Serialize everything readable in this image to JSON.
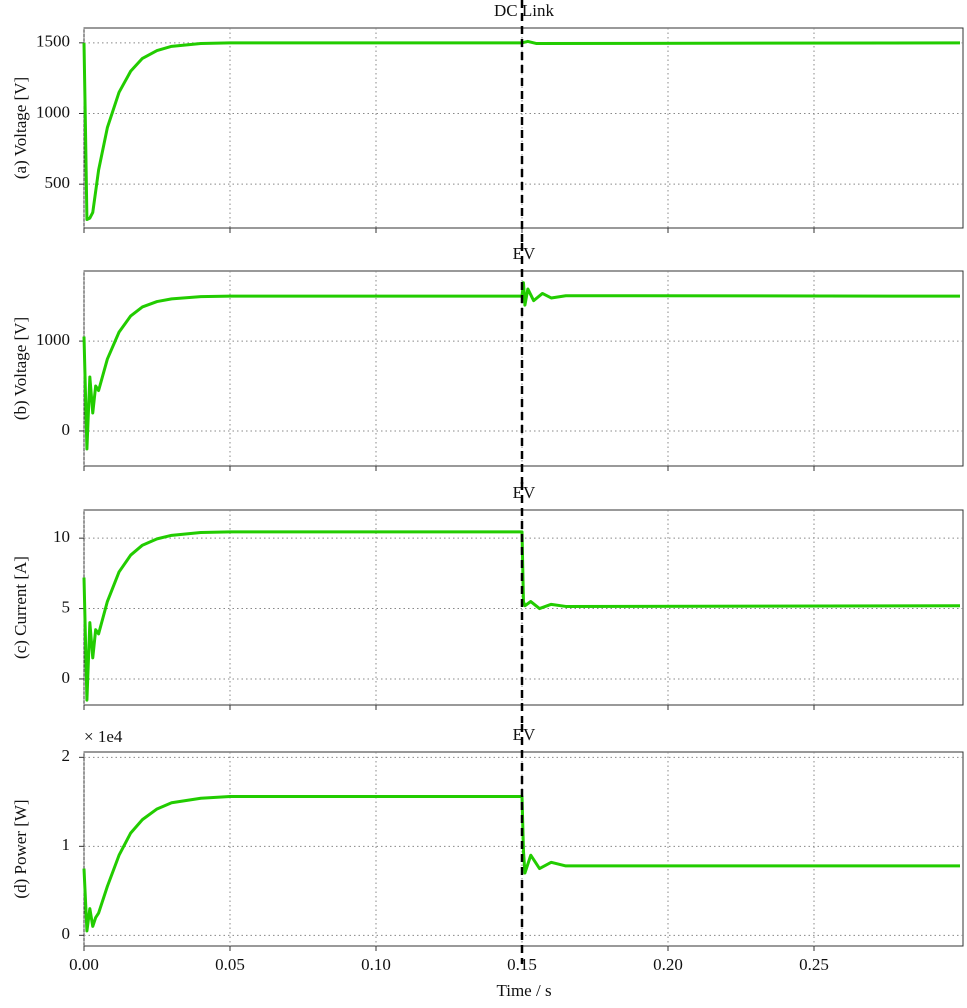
{
  "chart_data": [
    {
      "type": "line",
      "title": "DC Link",
      "ylabel": "(a) Voltage [V]",
      "xlim": [
        0,
        0.3
      ],
      "xticks": [
        0,
        0.05,
        0.1,
        0.15,
        0.2,
        0.25
      ],
      "show_xtick_labels": false,
      "ylim": [
        190,
        1605
      ],
      "yticks": [
        500,
        1000,
        1500
      ],
      "grid": true,
      "vline": 0.15,
      "series": [
        {
          "color": "#22cc00",
          "x": [
            0,
            0.0005,
            0.001,
            0.002,
            0.003,
            0.005,
            0.008,
            0.012,
            0.016,
            0.02,
            0.025,
            0.03,
            0.04,
            0.05,
            0.15,
            0.152,
            0.155,
            0.3
          ],
          "values": [
            1500,
            900,
            250,
            260,
            300,
            600,
            900,
            1150,
            1300,
            1390,
            1445,
            1475,
            1495,
            1500,
            1500,
            1510,
            1495,
            1500
          ]
        }
      ]
    },
    {
      "type": "line",
      "title": "EV",
      "ylabel": "(b) Voltage [V]",
      "xlim": [
        0,
        0.3
      ],
      "xticks": [
        0,
        0.05,
        0.1,
        0.15,
        0.2,
        0.25
      ],
      "show_xtick_labels": false,
      "ylim": [
        -390,
        1780
      ],
      "yticks": [
        0,
        1000
      ],
      "grid": true,
      "vline": 0.15,
      "series": [
        {
          "color": "#22cc00",
          "x": [
            0,
            0.001,
            0.002,
            0.003,
            0.004,
            0.005,
            0.008,
            0.012,
            0.016,
            0.02,
            0.025,
            0.03,
            0.04,
            0.05,
            0.15,
            0.1505,
            0.151,
            0.152,
            0.154,
            0.157,
            0.16,
            0.165,
            0.3
          ],
          "values": [
            1050,
            -200,
            600,
            200,
            500,
            450,
            800,
            1100,
            1280,
            1380,
            1440,
            1470,
            1495,
            1500,
            1500,
            1650,
            1400,
            1580,
            1450,
            1530,
            1480,
            1505,
            1500
          ]
        }
      ]
    },
    {
      "type": "line",
      "title": "EV",
      "ylabel": "(c) Current [A]",
      "xlim": [
        0,
        0.3
      ],
      "xticks": [
        0,
        0.05,
        0.1,
        0.15,
        0.2,
        0.25
      ],
      "show_xtick_labels": false,
      "ylim": [
        -1.85,
        12
      ],
      "yticks": [
        0,
        5,
        10
      ],
      "grid": true,
      "vline": 0.15,
      "series": [
        {
          "color": "#22cc00",
          "x": [
            0,
            0.001,
            0.002,
            0.003,
            0.004,
            0.005,
            0.008,
            0.012,
            0.016,
            0.02,
            0.025,
            0.03,
            0.04,
            0.05,
            0.15,
            0.1505,
            0.151,
            0.153,
            0.156,
            0.16,
            0.165,
            0.3
          ],
          "values": [
            7.2,
            -1.5,
            4,
            1.5,
            3.5,
            3.2,
            5.5,
            7.6,
            8.8,
            9.5,
            9.95,
            10.2,
            10.4,
            10.45,
            10.45,
            5.5,
            5.2,
            5.5,
            5.0,
            5.3,
            5.15,
            5.2
          ]
        }
      ]
    },
    {
      "type": "line",
      "title": "EV",
      "ylabel": "(d) Power [W]",
      "offset_label": "× 1e4",
      "xlabel": "Time / s",
      "xlim": [
        0,
        0.3
      ],
      "xticks": [
        {
          "value": 0,
          "label": "0.00"
        },
        0.05,
        {
          "value": 0.1,
          "label": "0.10"
        },
        0.15,
        {
          "value": 0.2,
          "label": "0.20"
        },
        0.25
      ],
      "show_xtick_labels": true,
      "ylim": [
        -0.12,
        2.06
      ],
      "yticks": [
        0,
        1,
        2
      ],
      "grid": true,
      "vline": 0.15,
      "series": [
        {
          "color": "#22cc00",
          "x": [
            0,
            0.001,
            0.002,
            0.003,
            0.004,
            0.005,
            0.008,
            0.012,
            0.016,
            0.02,
            0.025,
            0.03,
            0.04,
            0.05,
            0.15,
            0.1505,
            0.151,
            0.153,
            0.156,
            0.16,
            0.165,
            0.3
          ],
          "values": [
            0.75,
            0.05,
            0.3,
            0.1,
            0.2,
            0.25,
            0.55,
            0.9,
            1.15,
            1.3,
            1.42,
            1.49,
            1.54,
            1.56,
            1.56,
            0.95,
            0.7,
            0.9,
            0.75,
            0.82,
            0.78,
            0.78
          ]
        }
      ]
    }
  ]
}
